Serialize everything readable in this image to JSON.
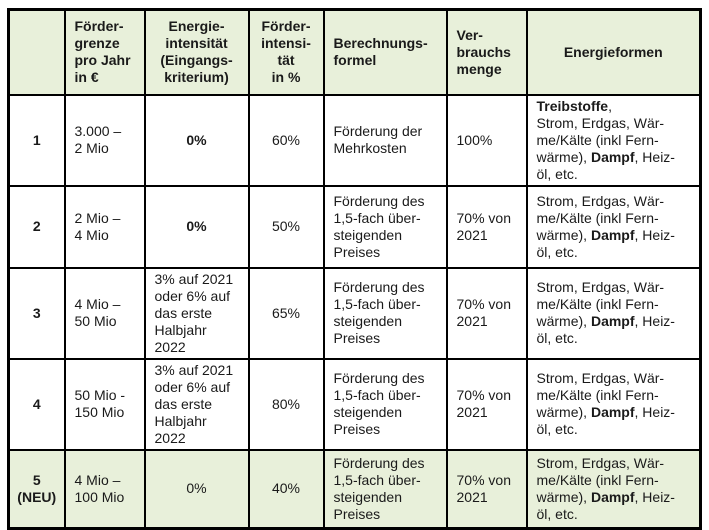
{
  "colors": {
    "border": "#000000",
    "header_bg": "#e8f0da",
    "highlight_row_bg": "#e8f0da",
    "body_bg": "#ffffff",
    "text": "#1a1a1a"
  },
  "table": {
    "header": {
      "cells": [
        "",
        "Förder-\ngrenze\npro Jahr\nin €",
        "Energie-\nintensität\n(Eingangs-\nkriterium)",
        "Förder-\nintensi-\ntät\nin %",
        "Berechnungs-\nformel",
        "Ver-\nbrauchs\nmenge",
        "Energieformen"
      ]
    },
    "rows": [
      {
        "num": "1",
        "foerdergrenze": "3.000 –\n2 Mio",
        "energieintensitaet": "0%",
        "foerderintensitaet": "60%",
        "berechnungsformel": "Förderung der\nMehrkosten",
        "verbrauchsmenge": "100%",
        "energieformen": {
          "segments": [
            {
              "t": "Treibstoffe",
              "b": true
            },
            {
              "t": ",\nStrom, Erdgas, Wär-\nme/Kälte (inkl Fern-\nwärme), "
            },
            {
              "t": "Dampf",
              "b": true
            },
            {
              "t": ", Heiz-\nöl, etc."
            }
          ]
        }
      },
      {
        "num": "2",
        "foerdergrenze": "2 Mio –\n4 Mio",
        "energieintensitaet": "0%",
        "foerderintensitaet": "50%",
        "berechnungsformel": "Förderung des\n1,5-fach über-\nsteigenden\nPreises",
        "verbrauchsmenge": "70% von\n2021",
        "energieformen": {
          "segments": [
            {
              "t": "Strom, Erdgas, Wär-\nme/Kälte (inkl Fern-\nwärme), "
            },
            {
              "t": "Dampf",
              "b": true
            },
            {
              "t": ", Heiz-\nöl, etc."
            }
          ]
        }
      },
      {
        "num": "3",
        "foerdergrenze": "4 Mio –\n50 Mio",
        "energieintensitaet": "3% auf 2021\noder 6% auf\ndas erste\nHalbjahr\n2022",
        "foerderintensitaet": "65%",
        "berechnungsformel": "Förderung des\n1,5-fach über-\nsteigenden\nPreises",
        "verbrauchsmenge": "70% von\n2021",
        "energieformen": {
          "segments": [
            {
              "t": "Strom, Erdgas, Wär-\nme/Kälte (inkl Fern-\nwärme), "
            },
            {
              "t": "Dampf",
              "b": true
            },
            {
              "t": ", Heiz-\nöl, etc."
            }
          ]
        }
      },
      {
        "num": "4",
        "foerdergrenze": "50 Mio -\n150 Mio",
        "energieintensitaet": "3% auf 2021\noder 6% auf\ndas erste\nHalbjahr\n2022",
        "foerderintensitaet": "80%",
        "berechnungsformel": "Förderung des\n1,5-fach über-\nsteigenden\nPreises",
        "verbrauchsmenge": "70% von\n2021",
        "energieformen": {
          "segments": [
            {
              "t": "Strom, Erdgas, Wär-\nme/Kälte (inkl Fern-\nwärme), "
            },
            {
              "t": "Dampf",
              "b": true
            },
            {
              "t": ", Heiz-\nöl, etc."
            }
          ]
        }
      },
      {
        "num": "5\n(NEU)",
        "foerdergrenze": "4 Mio –\n100 Mio",
        "energieintensitaet": "0%",
        "foerderintensitaet": "40%",
        "berechnungsformel": "Förderung des\n1,5-fach über-\nsteigenden\nPreises",
        "verbrauchsmenge": "70% von\n2021",
        "energieformen": {
          "segments": [
            {
              "t": "Strom, Erdgas, Wär-\nme/Kälte (inkl Fern-\nwärme), "
            },
            {
              "t": "Dampf",
              "b": true
            },
            {
              "t": ", Heiz-\nöl, etc."
            }
          ]
        }
      }
    ]
  }
}
